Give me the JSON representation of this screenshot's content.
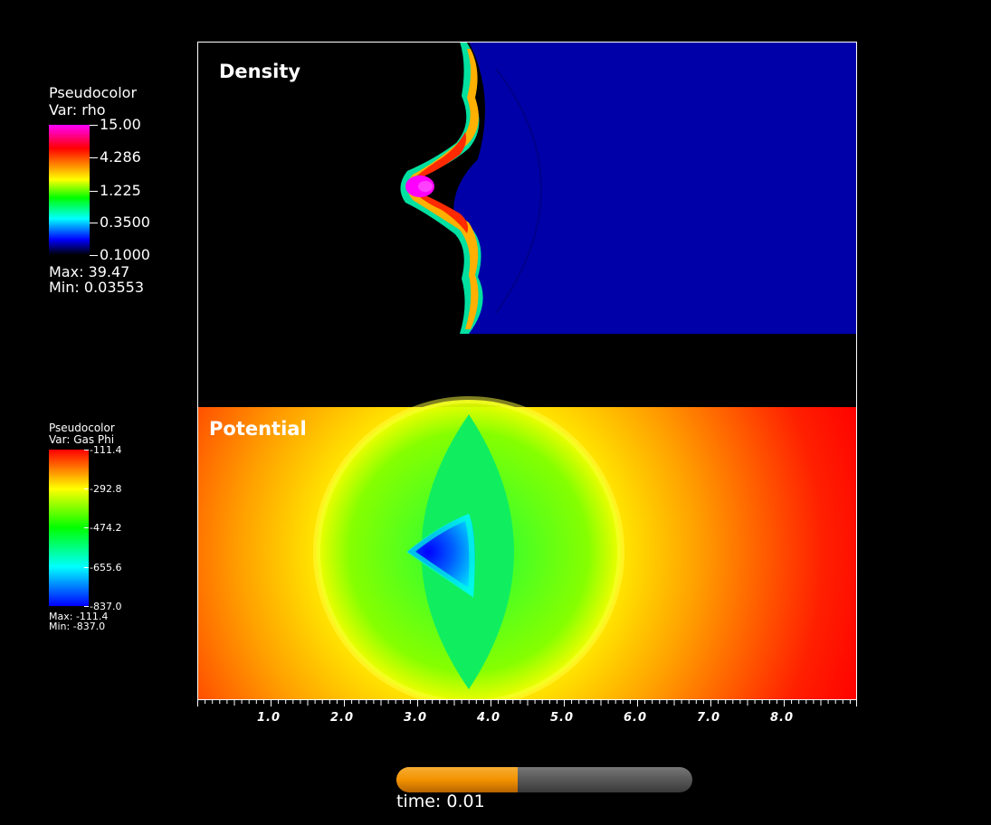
{
  "density_legend": {
    "title": "Pseudocolor",
    "var": "Var: rho",
    "ticks": [
      "15.00",
      "4.286",
      "1.225",
      "0.3500",
      "0.1000"
    ],
    "max": "Max:  39.47",
    "min": "Min:  0.03553",
    "colormap": [
      "#ff00ff",
      "#ff0000",
      "#ffff00",
      "#00ff00",
      "#00ffff",
      "#0000ff",
      "#000000"
    ]
  },
  "potential_legend": {
    "title": "Pseudocolor",
    "var": "Var: Gas Phi",
    "ticks": [
      "-111.4",
      "-292.8",
      "-474.2",
      "-655.6",
      "-837.0"
    ],
    "max": "Max: -111.4",
    "min": "Min: -837.0",
    "colormap": [
      "#ff0000",
      "#ffff00",
      "#00ff00",
      "#00ffff",
      "#0000ff"
    ]
  },
  "panels": {
    "density_label": "Density",
    "potential_label": "Potential"
  },
  "x_axis": {
    "tick_labels": [
      "1.0",
      "2.0",
      "3.0",
      "4.0",
      "5.0",
      "6.0",
      "7.0",
      "8.0"
    ],
    "range": [
      0,
      9
    ]
  },
  "time": {
    "label": "time: 0.01",
    "progress": 0.41
  }
}
